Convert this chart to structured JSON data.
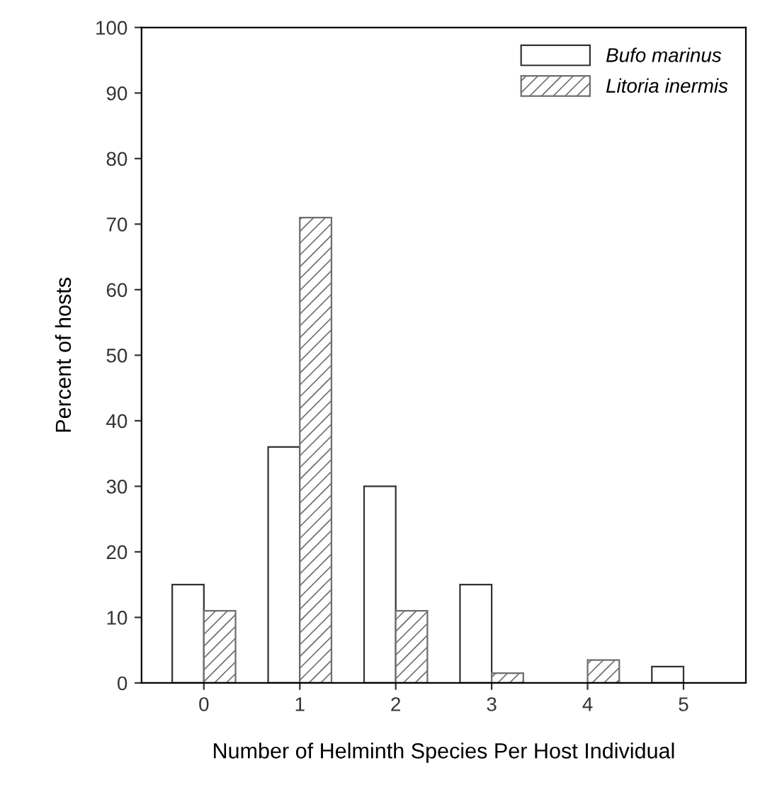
{
  "chart_data": {
    "type": "bar",
    "xlabel": "Number of Helminth Species Per Host Individual",
    "ylabel": "Percent of hosts",
    "categories": [
      "0",
      "1",
      "2",
      "3",
      "4",
      "5"
    ],
    "series": [
      {
        "name": "Bufo marinus",
        "color": "#ffffff",
        "values": [
          15,
          36,
          30,
          15,
          0,
          2.5
        ]
      },
      {
        "name": "Litoria inermis",
        "color": "#6e6e6e",
        "values": [
          11,
          71,
          11,
          1.5,
          3.5,
          0
        ]
      }
    ],
    "ylim": [
      0,
      100
    ],
    "yticks": [
      0,
      10,
      20,
      30,
      40,
      50,
      60,
      70,
      80,
      90,
      100
    ],
    "grid": false,
    "legend": "top right"
  }
}
